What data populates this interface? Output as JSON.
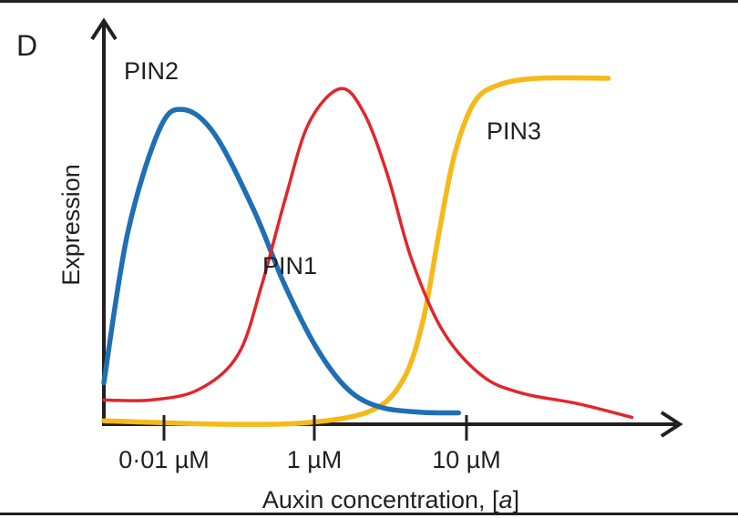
{
  "panel_label": "D",
  "chart_data": {
    "type": "line",
    "xlabel": "Auxin concentration, [a]",
    "ylabel": "Expression",
    "x_tick_labels": [
      "0·01 µM",
      "1 µM",
      "10 µM"
    ],
    "grid": false,
    "legend": "none (series labeled directly on the curves)",
    "series": [
      {
        "name": "PIN2",
        "color": "#1f6fb4",
        "points": [
          [
            0.0,
            0.12
          ],
          [
            0.3,
            0.55
          ],
          [
            0.7,
            0.85
          ],
          [
            1.0,
            0.91
          ],
          [
            1.4,
            0.84
          ],
          [
            1.9,
            0.62
          ],
          [
            2.3,
            0.4
          ],
          [
            2.7,
            0.22
          ],
          [
            3.1,
            0.1
          ],
          [
            3.5,
            0.05
          ],
          [
            4.0,
            0.035
          ],
          [
            4.5,
            0.033
          ]
        ]
      },
      {
        "name": "PIN1",
        "color": "#e1262c",
        "points": [
          [
            0.0,
            0.07
          ],
          [
            0.6,
            0.07
          ],
          [
            1.2,
            0.1
          ],
          [
            1.7,
            0.2
          ],
          [
            2.0,
            0.4
          ],
          [
            2.3,
            0.65
          ],
          [
            2.6,
            0.87
          ],
          [
            3.0,
            0.97
          ],
          [
            3.3,
            0.9
          ],
          [
            3.6,
            0.72
          ],
          [
            3.9,
            0.48
          ],
          [
            4.3,
            0.27
          ],
          [
            4.8,
            0.14
          ],
          [
            5.3,
            0.09
          ],
          [
            6.0,
            0.06
          ],
          [
            6.7,
            0.02
          ]
        ]
      },
      {
        "name": "PIN3",
        "color": "#f5b919",
        "points": [
          [
            0.0,
            0.01
          ],
          [
            1.5,
            0.0
          ],
          [
            2.6,
            0.005
          ],
          [
            3.4,
            0.04
          ],
          [
            3.8,
            0.13
          ],
          [
            4.05,
            0.3
          ],
          [
            4.25,
            0.55
          ],
          [
            4.45,
            0.78
          ],
          [
            4.7,
            0.93
          ],
          [
            5.0,
            0.98
          ],
          [
            5.5,
            1.0
          ],
          [
            6.4,
            1.0
          ]
        ]
      }
    ]
  }
}
